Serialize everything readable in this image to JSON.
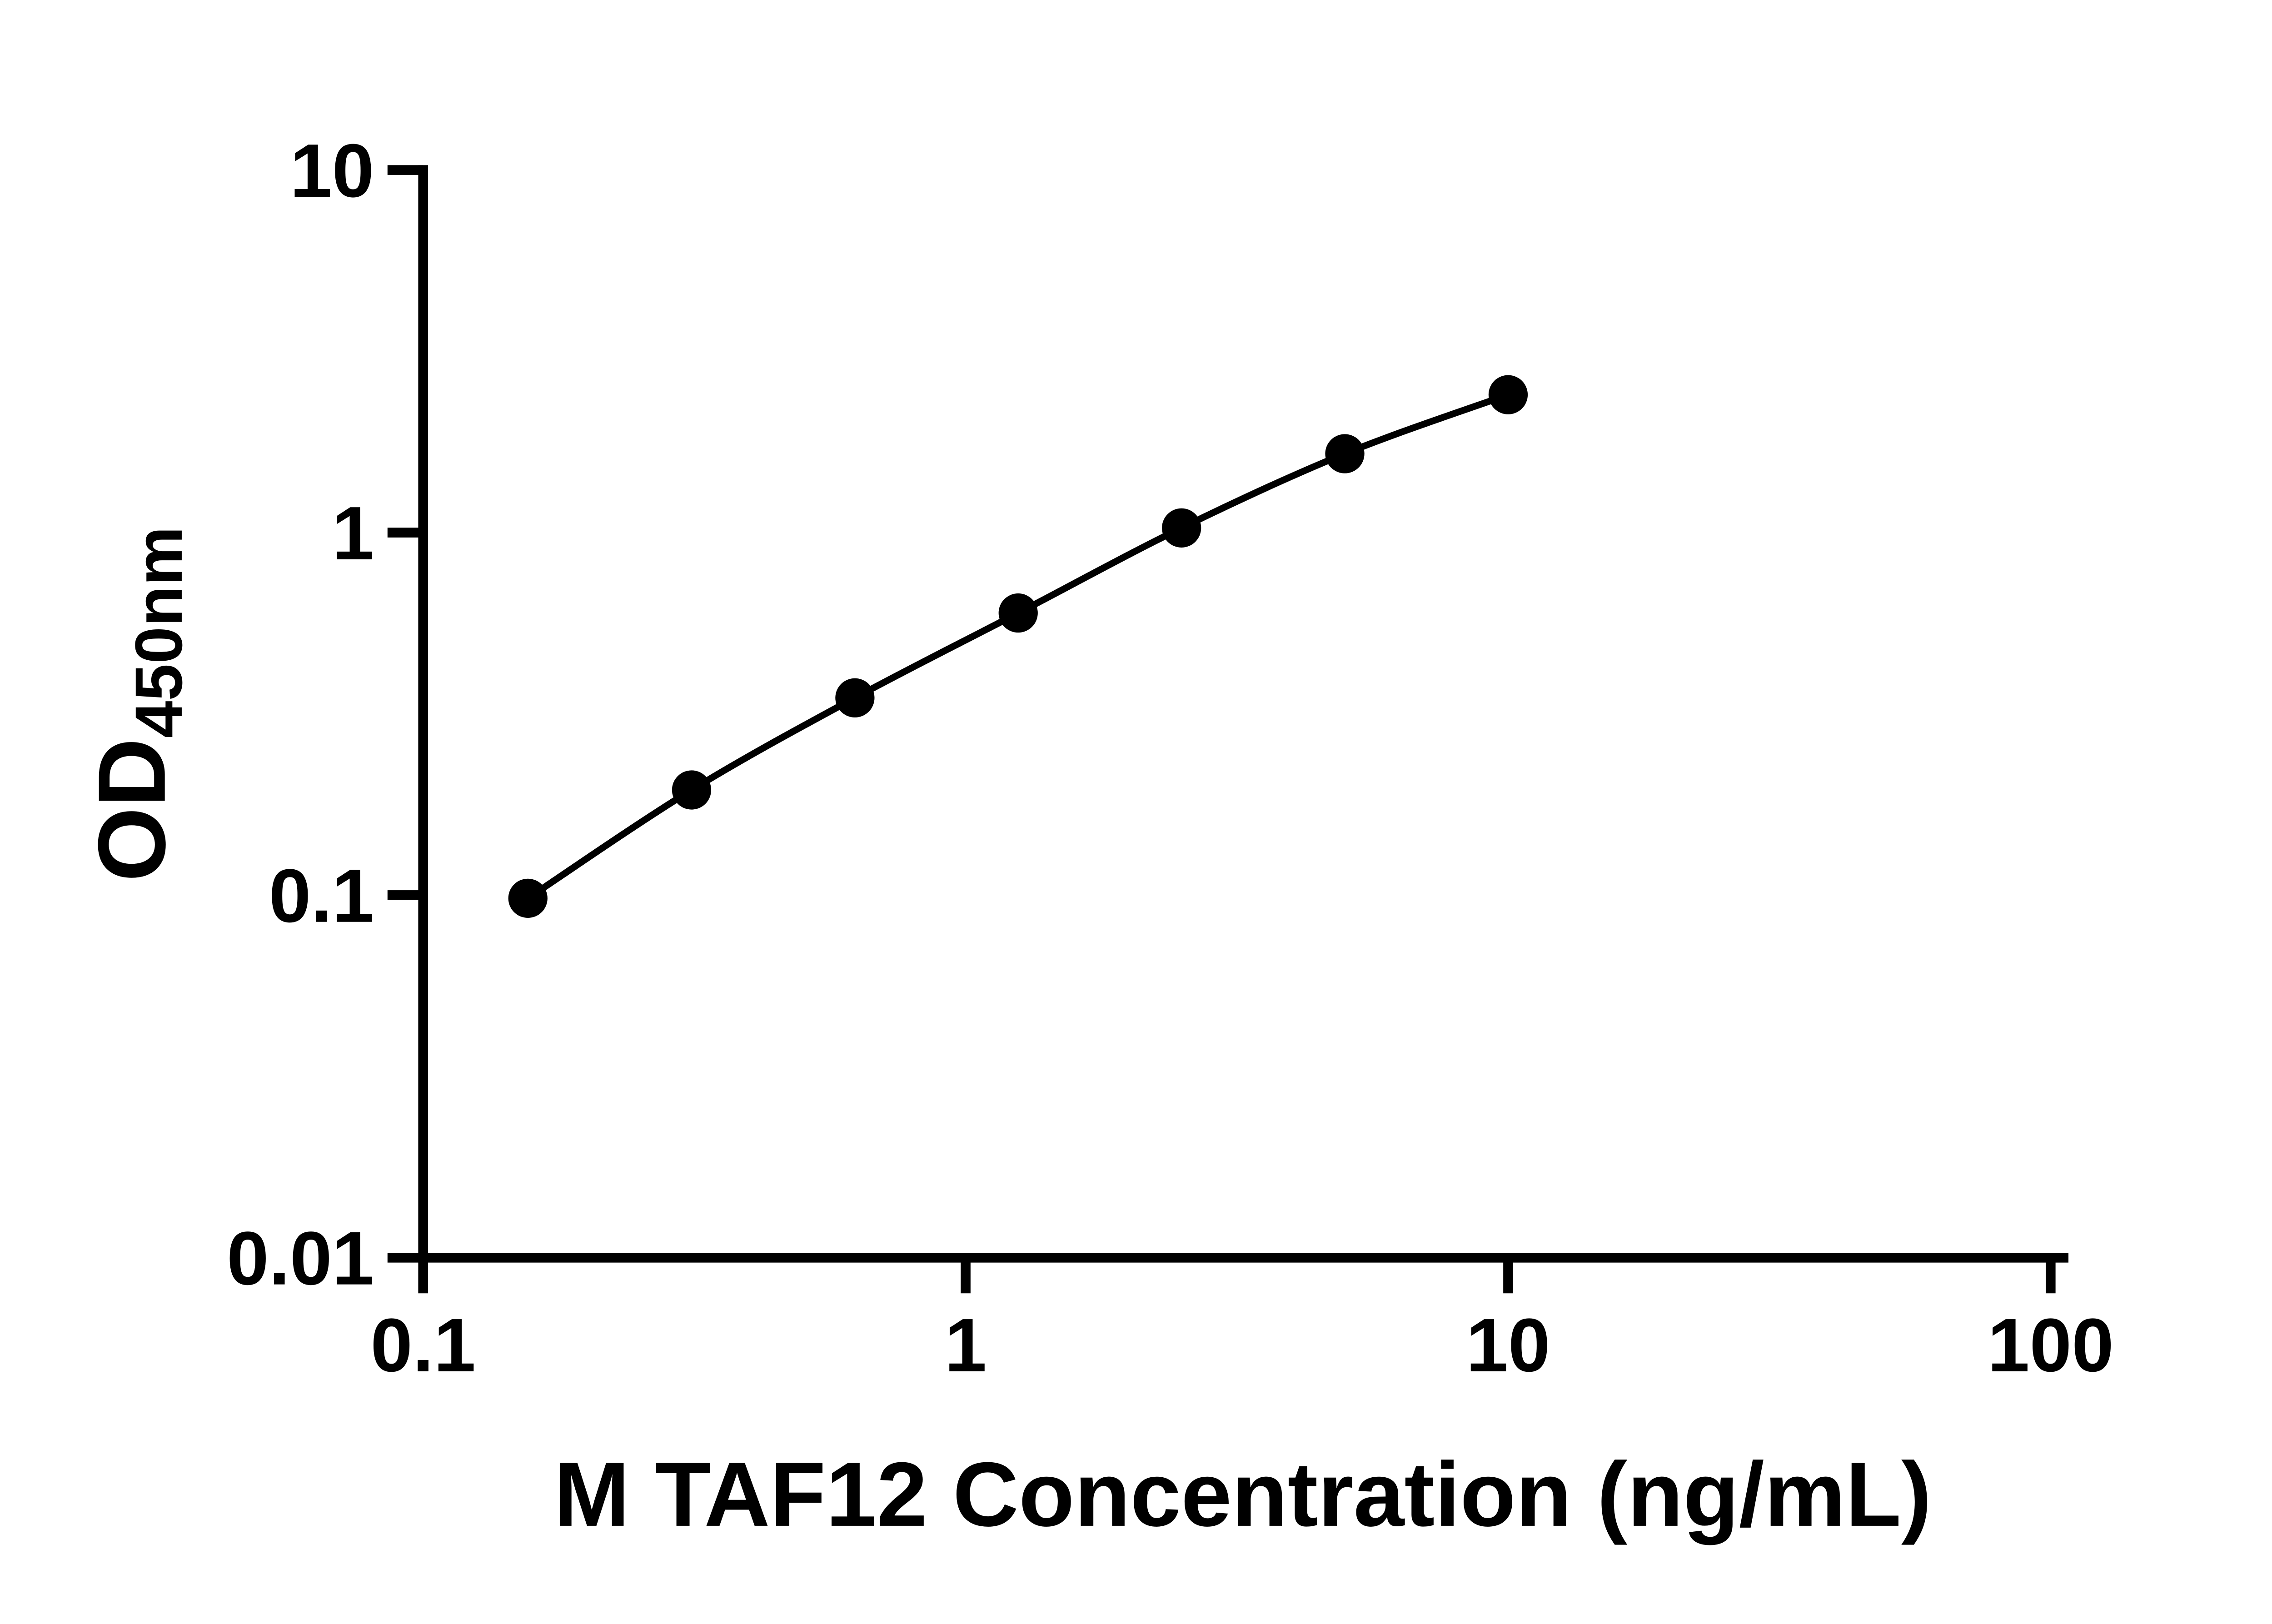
{
  "chart_data": {
    "type": "line",
    "title": "",
    "xlabel": "M TAF12 Concentration (ng/mL)",
    "ylabel_main": "OD",
    "ylabel_sub": "450nm",
    "x_scale": "log",
    "y_scale": "log",
    "xlim": [
      0.1,
      100
    ],
    "ylim": [
      0.01,
      10
    ],
    "grid": false,
    "legend": null,
    "x": [
      0.156,
      0.3125,
      0.625,
      1.25,
      2.5,
      5,
      10
    ],
    "y": [
      0.098,
      0.195,
      0.35,
      0.6,
      1.03,
      1.65,
      2.4
    ],
    "x_ticks": [
      {
        "value": 0.1,
        "label": "0.1"
      },
      {
        "value": 1,
        "label": "1"
      },
      {
        "value": 10,
        "label": "10"
      },
      {
        "value": 100,
        "label": "100"
      }
    ],
    "y_ticks": [
      {
        "value": 0.01,
        "label": "0.01"
      },
      {
        "value": 0.1,
        "label": "0.1"
      },
      {
        "value": 1,
        "label": "1"
      },
      {
        "value": 10,
        "label": "10"
      }
    ],
    "marker_color": "#000000",
    "line_color": "#000000",
    "axis_color": "#000000",
    "background": "#ffffff"
  }
}
